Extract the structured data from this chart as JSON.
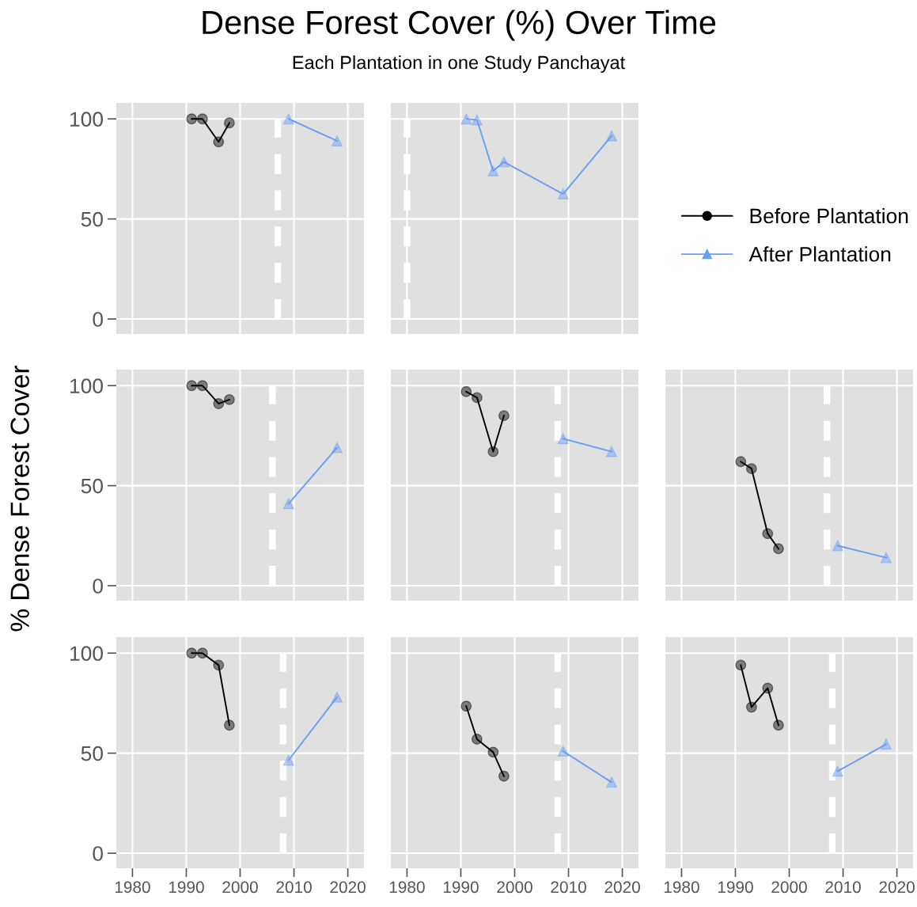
{
  "chart_data": [
    {
      "type": "line",
      "title": "Dense Forest Cover (%) Over Time",
      "subtitle": "Each Plantation in one Study Panchayat",
      "xlim": [
        1977,
        2023
      ],
      "ylim": [
        -7.5,
        108
      ],
      "xticks": [
        1980,
        1990,
        2000,
        2010,
        2020
      ],
      "yticks": [
        0,
        50,
        100
      ],
      "grid": true,
      "tick_labels": "y",
      "ref_lines": [
        {
          "axis": "x",
          "value": 2007,
          "color": "#ffffff",
          "line_style": "dashed"
        }
      ],
      "series": [
        {
          "color": "#000000",
          "marker": "circle",
          "x": [
            1991,
            1993,
            1996,
            1998
          ],
          "values": [
            100,
            100,
            88.5,
            98
          ]
        },
        {
          "color": "#6b9ef5",
          "marker": "triangle",
          "x": [
            2009,
            2018
          ],
          "values": [
            100,
            89
          ]
        }
      ]
    },
    {
      "type": "line",
      "xlim": [
        1977,
        2023
      ],
      "ylim": [
        -7.5,
        108
      ],
      "xticks": [
        1980,
        1990,
        2000,
        2010,
        2020
      ],
      "yticks": [
        0,
        50,
        100
      ],
      "grid": true,
      "tick_labels": false,
      "legend": "right",
      "ref_lines": [
        {
          "axis": "x",
          "value": 1980,
          "color": "#ffffff",
          "line_style": "dashed"
        }
      ],
      "series": [
        {
          "name": "Before Plantation",
          "color": "#000000",
          "marker": "circle"
        },
        {
          "name": "After Plantation",
          "color": "#6b9ef5",
          "marker": "triangle",
          "x": [
            1991,
            1993,
            1996,
            1998,
            2009,
            2018
          ],
          "values": [
            100,
            99.5,
            74,
            78.5,
            62.5,
            91.5
          ]
        }
      ]
    },
    {
      "type": "line",
      "ylabel": "% Dense Forest Cover",
      "xlim": [
        1977,
        2023
      ],
      "ylim": [
        -7.5,
        108
      ],
      "xticks": [
        1980,
        1990,
        2000,
        2010,
        2020
      ],
      "yticks": [
        0,
        50,
        100
      ],
      "grid": true,
      "tick_labels": "y",
      "ref_lines": [
        {
          "axis": "x",
          "value": 2006,
          "color": "#ffffff",
          "line_style": "dashed"
        }
      ],
      "series": [
        {
          "color": "#000000",
          "marker": "circle",
          "x": [
            1991,
            1993,
            1996,
            1998
          ],
          "values": [
            100,
            100,
            91,
            93
          ]
        },
        {
          "color": "#6b9ef5",
          "marker": "triangle",
          "x": [
            2009,
            2018
          ],
          "values": [
            41,
            69
          ]
        }
      ]
    },
    {
      "type": "line",
      "xlim": [
        1977,
        2023
      ],
      "ylim": [
        -7.5,
        108
      ],
      "xticks": [
        1980,
        1990,
        2000,
        2010,
        2020
      ],
      "yticks": [
        0,
        50,
        100
      ],
      "grid": true,
      "tick_labels": false,
      "ref_lines": [
        {
          "axis": "x",
          "value": 2008,
          "color": "#ffffff",
          "line_style": "dashed"
        }
      ],
      "series": [
        {
          "color": "#000000",
          "marker": "circle",
          "x": [
            1991,
            1993,
            1996,
            1998
          ],
          "values": [
            97,
            94,
            67,
            85
          ]
        },
        {
          "color": "#6b9ef5",
          "marker": "triangle",
          "x": [
            2009,
            2018
          ],
          "values": [
            73.5,
            67
          ]
        }
      ]
    },
    {
      "type": "line",
      "xlim": [
        1977,
        2023
      ],
      "ylim": [
        -7.5,
        108
      ],
      "xticks": [
        1980,
        1990,
        2000,
        2010,
        2020
      ],
      "yticks": [
        0,
        50,
        100
      ],
      "grid": true,
      "tick_labels": false,
      "ref_lines": [
        {
          "axis": "x",
          "value": 2007,
          "color": "#ffffff",
          "line_style": "dashed"
        }
      ],
      "series": [
        {
          "color": "#000000",
          "marker": "circle",
          "x": [
            1991,
            1993,
            1996,
            1998
          ],
          "values": [
            62,
            58.5,
            26,
            18.5
          ]
        },
        {
          "color": "#6b9ef5",
          "marker": "triangle",
          "x": [
            2009,
            2018
          ],
          "values": [
            20,
            14
          ]
        }
      ]
    },
    {
      "type": "line",
      "xlim": [
        1977,
        2023
      ],
      "ylim": [
        -7.5,
        108
      ],
      "xticks": [
        1980,
        1990,
        2000,
        2010,
        2020
      ],
      "yticks": [
        0,
        50,
        100
      ],
      "grid": true,
      "ref_lines": [
        {
          "axis": "x",
          "value": 2008,
          "color": "#ffffff",
          "line_style": "dashed"
        }
      ],
      "series": [
        {
          "color": "#000000",
          "marker": "circle",
          "x": [
            1991,
            1993,
            1996,
            1998
          ],
          "values": [
            100,
            100,
            94,
            64
          ]
        },
        {
          "color": "#6b9ef5",
          "marker": "triangle",
          "x": [
            2009,
            2018
          ],
          "values": [
            46.5,
            78
          ]
        }
      ]
    },
    {
      "type": "line",
      "xlim": [
        1977,
        2023
      ],
      "ylim": [
        -7.5,
        108
      ],
      "xticks": [
        1980,
        1990,
        2000,
        2010,
        2020
      ],
      "yticks": [
        0,
        50,
        100
      ],
      "grid": true,
      "tick_labels": "x",
      "ref_lines": [
        {
          "axis": "x",
          "value": 2008,
          "color": "#ffffff",
          "line_style": "dashed"
        }
      ],
      "series": [
        {
          "color": "#000000",
          "marker": "circle",
          "x": [
            1991,
            1993,
            1996,
            1998
          ],
          "values": [
            73.5,
            57,
            50.5,
            38.5
          ]
        },
        {
          "color": "#6b9ef5",
          "marker": "triangle",
          "x": [
            2009,
            2018
          ],
          "values": [
            51,
            35.5
          ]
        }
      ]
    },
    {
      "type": "line",
      "xlim": [
        1977,
        2023
      ],
      "ylim": [
        -7.5,
        108
      ],
      "xticks": [
        1980,
        1990,
        2000,
        2010,
        2020
      ],
      "yticks": [
        0,
        50,
        100
      ],
      "grid": true,
      "tick_labels": "x",
      "ref_lines": [
        {
          "axis": "x",
          "value": 2008,
          "color": "#ffffff",
          "line_style": "dashed"
        }
      ],
      "series": [
        {
          "color": "#000000",
          "marker": "circle",
          "x": [
            1991,
            1993,
            1996,
            1998
          ],
          "values": [
            94,
            73,
            82.5,
            64
          ]
        },
        {
          "color": "#6b9ef5",
          "marker": "triangle",
          "x": [
            2009,
            2018
          ],
          "values": [
            41,
            54.5
          ]
        }
      ]
    }
  ]
}
